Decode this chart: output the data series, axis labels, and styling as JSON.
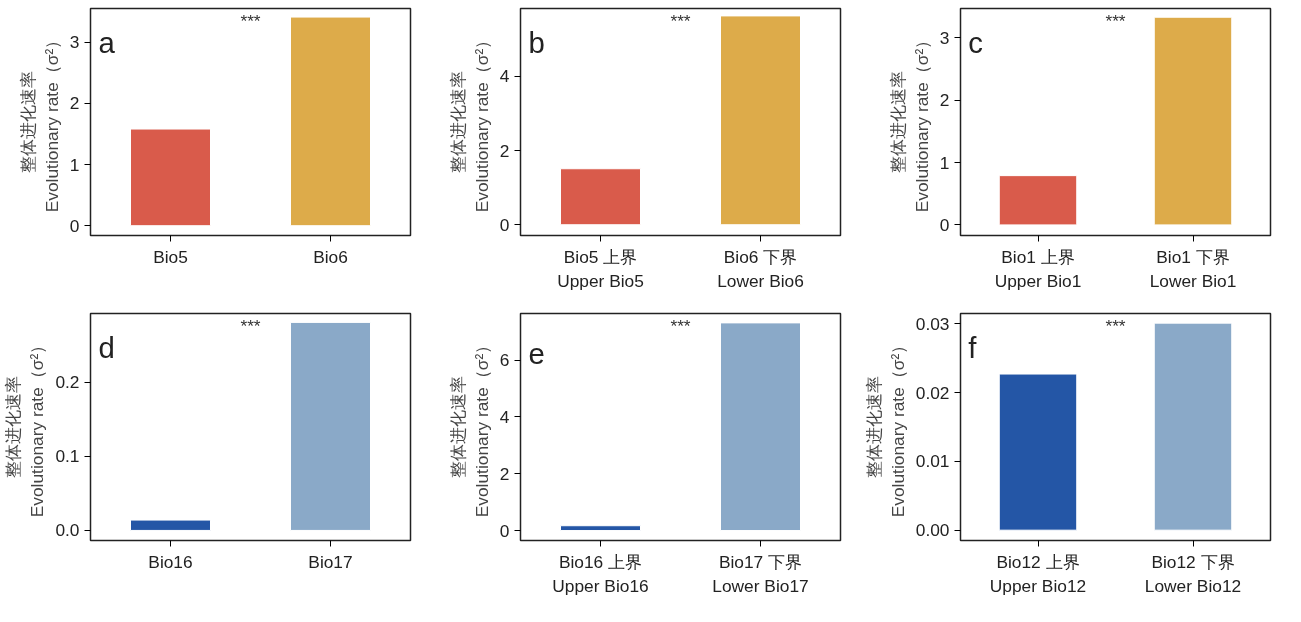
{
  "chart_data": [
    {
      "type": "bar",
      "title": "a",
      "ylabel": "整体进化速率\nEvolutionary rate（σ²）",
      "categories": [
        "Bio5",
        "Bio6"
      ],
      "values": [
        1.58,
        3.41
      ],
      "colors": [
        "#d95b4b",
        "#ddab4a"
      ],
      "ylim": [
        -0.16,
        3.55
      ],
      "yticks": [
        0,
        1,
        2,
        3
      ],
      "grid": false,
      "annotations": [
        "***"
      ]
    },
    {
      "type": "bar",
      "title": "b",
      "ylabel": "整体进化速率\nEvolutionary rate（σ²）",
      "categories": [
        "Bio5 上界\nUpper Bio5",
        "Bio6 下界\nLower Bio6"
      ],
      "values": [
        1.51,
        5.63
      ],
      "colors": [
        "#d95b4b",
        "#ddab4a"
      ],
      "ylim": [
        -0.29,
        5.83
      ],
      "yticks": [
        0,
        2,
        4
      ],
      "grid": false,
      "annotations": [
        "***"
      ]
    },
    {
      "type": "bar",
      "title": "c",
      "ylabel": "整体进化速率\nEvolutionary rate（σ²）",
      "categories": [
        "Bio1 上界\nUpper Bio1",
        "Bio1 下界\nLower Bio1"
      ],
      "values": [
        0.79,
        3.33
      ],
      "colors": [
        "#d95b4b",
        "#ddab4a"
      ],
      "ylim": [
        -0.17,
        3.47
      ],
      "yticks": [
        0,
        1,
        2,
        3
      ],
      "grid": false,
      "annotations": [
        "***"
      ]
    },
    {
      "type": "bar",
      "title": "d",
      "ylabel": "整体进化速率\nEvolutionary rate（σ²）",
      "categories": [
        "Bio16",
        "Bio17"
      ],
      "values": [
        0.014,
        0.281
      ],
      "colors": [
        "#2456a6",
        "#8aa9c8"
      ],
      "ylim": [
        -0.0136,
        0.293
      ],
      "yticks": [
        {
          "value": 0,
          "label": "0.0"
        },
        0.1,
        0.2
      ],
      "grid": false,
      "annotations": [
        "***"
      ]
    },
    {
      "type": "bar",
      "title": "e",
      "ylabel": "整体进化速率\nEvolutionary rate（σ²）",
      "categories": [
        "Bio16 上界\nUpper Bio16",
        "Bio17 下界\nLower Bio17"
      ],
      "values": [
        0.17,
        7.31
      ],
      "colors": [
        "#2456a6",
        "#8aa9c8"
      ],
      "ylim": [
        -0.35,
        7.64
      ],
      "yticks": [
        0,
        2,
        4,
        6
      ],
      "grid": false,
      "annotations": [
        "***"
      ]
    },
    {
      "type": "bar",
      "title": "f",
      "ylabel": "整体进化速率\nEvolutionary rate（σ²）",
      "categories": [
        "Bio12 上界\nUpper Bio12",
        "Bio12 下界\nLower Bio12"
      ],
      "values": [
        0.0227,
        0.0301
      ],
      "colors": [
        "#2456a6",
        "#8aa9c8"
      ],
      "ylim": [
        -0.0015,
        0.0315
      ],
      "yticks": [
        {
          "value": 0,
          "label": "0.00"
        },
        0.01,
        0.02,
        0.03
      ],
      "grid": false,
      "annotations": [
        "***"
      ]
    }
  ]
}
